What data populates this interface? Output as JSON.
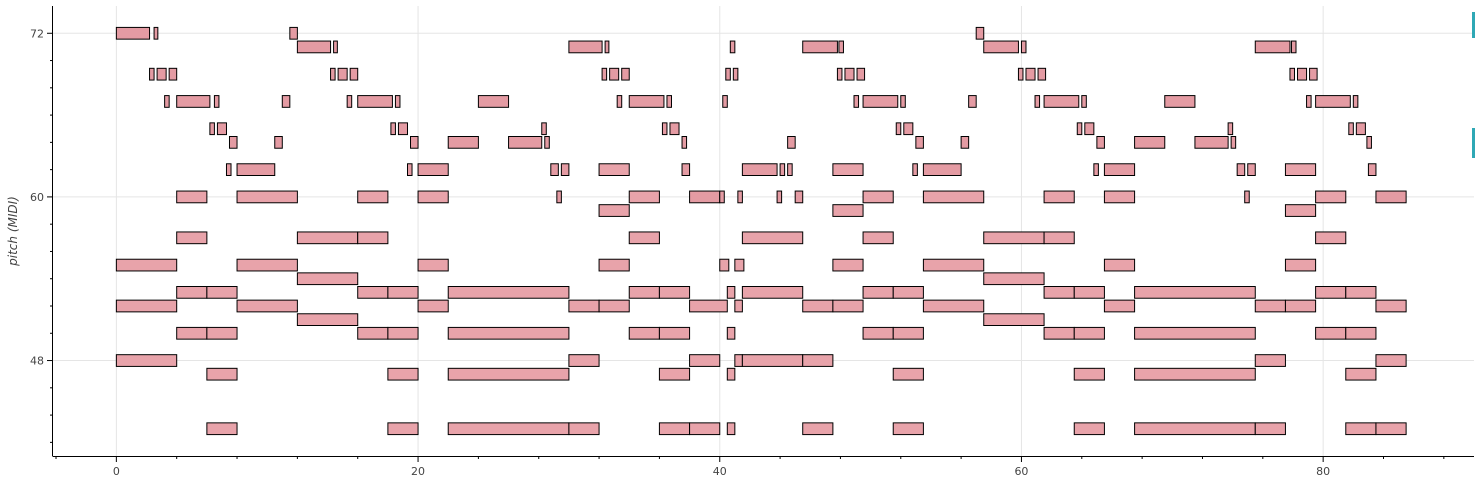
{
  "chart_data": {
    "type": "piano-roll",
    "title": "",
    "xlabel": "",
    "ylabel": "pitch (MIDI)",
    "xlim": [
      -4.2,
      90.0
    ],
    "ylim": [
      41.0,
      74.0
    ],
    "x_ticks": [
      0,
      20,
      40,
      60,
      80
    ],
    "y_ticks": [
      48,
      60,
      72
    ],
    "grid": true,
    "colors": {
      "note_fill": "#e8a3aa",
      "note_fill_dark": "#e49ba3",
      "note_stroke": "#000000",
      "grid": "#e5e5e5",
      "axis": "#000000",
      "accent_marker": "#2fa8b5"
    },
    "notes": [
      {
        "p": 72,
        "s": 0,
        "e": 2.2,
        "v": 1
      },
      {
        "p": 72,
        "s": 2.5,
        "e": 2.75,
        "v": 1
      },
      {
        "p": 72,
        "s": 11.5,
        "e": 12,
        "v": 1
      },
      {
        "p": 72,
        "s": 57,
        "e": 57.5,
        "v": 1
      },
      {
        "p": 71,
        "s": 12,
        "e": 14.2,
        "v": 1
      },
      {
        "p": 71,
        "s": 14.4,
        "e": 14.65,
        "v": 1
      },
      {
        "p": 71,
        "s": 30,
        "e": 32.2,
        "v": 1
      },
      {
        "p": 71,
        "s": 32.4,
        "e": 32.65,
        "v": 1
      },
      {
        "p": 71,
        "s": 40.7,
        "e": 41,
        "v": 1
      },
      {
        "p": 71,
        "s": 45.5,
        "e": 47.8,
        "v": 1
      },
      {
        "p": 71,
        "s": 47.9,
        "e": 48.2,
        "v": 1
      },
      {
        "p": 71,
        "s": 57.5,
        "e": 59.8,
        "v": 1
      },
      {
        "p": 71,
        "s": 60,
        "e": 60.3,
        "v": 1
      },
      {
        "p": 71,
        "s": 75.5,
        "e": 77.8,
        "v": 1
      },
      {
        "p": 71,
        "s": 77.9,
        "e": 78.2,
        "v": 1
      },
      {
        "p": 69,
        "s": 2.2,
        "e": 2.5,
        "v": 1
      },
      {
        "p": 69,
        "s": 2.7,
        "e": 3.3,
        "v": 1
      },
      {
        "p": 69,
        "s": 3.5,
        "e": 4,
        "v": 1
      },
      {
        "p": 69,
        "s": 14.2,
        "e": 14.5,
        "v": 1
      },
      {
        "p": 69,
        "s": 14.7,
        "e": 15.3,
        "v": 1
      },
      {
        "p": 69,
        "s": 15.5,
        "e": 16,
        "v": 1
      },
      {
        "p": 69,
        "s": 32.2,
        "e": 32.5,
        "v": 1
      },
      {
        "p": 69,
        "s": 32.7,
        "e": 33.3,
        "v": 1
      },
      {
        "p": 69,
        "s": 33.5,
        "e": 34,
        "v": 1
      },
      {
        "p": 69,
        "s": 40.4,
        "e": 40.7,
        "v": 1
      },
      {
        "p": 69,
        "s": 40.9,
        "e": 41.2,
        "v": 1
      },
      {
        "p": 69,
        "s": 47.8,
        "e": 48.1,
        "v": 1
      },
      {
        "p": 69,
        "s": 48.3,
        "e": 48.9,
        "v": 1
      },
      {
        "p": 69,
        "s": 49.1,
        "e": 49.6,
        "v": 1
      },
      {
        "p": 69,
        "s": 59.8,
        "e": 60.1,
        "v": 1
      },
      {
        "p": 69,
        "s": 60.3,
        "e": 60.9,
        "v": 1
      },
      {
        "p": 69,
        "s": 61.1,
        "e": 61.6,
        "v": 1
      },
      {
        "p": 69,
        "s": 77.8,
        "e": 78.1,
        "v": 1
      },
      {
        "p": 69,
        "s": 78.3,
        "e": 78.9,
        "v": 1
      },
      {
        "p": 69,
        "s": 79.1,
        "e": 79.6,
        "v": 1
      },
      {
        "p": 67,
        "s": 3.2,
        "e": 3.5,
        "v": 1
      },
      {
        "p": 67,
        "s": 4,
        "e": 6.2,
        "v": 1
      },
      {
        "p": 67,
        "s": 6.5,
        "e": 6.8,
        "v": 1
      },
      {
        "p": 67,
        "s": 11,
        "e": 11.5,
        "v": 1
      },
      {
        "p": 67,
        "s": 15.3,
        "e": 15.6,
        "v": 1
      },
      {
        "p": 67,
        "s": 16,
        "e": 18.3,
        "v": 1
      },
      {
        "p": 67,
        "s": 18.5,
        "e": 18.8,
        "v": 1
      },
      {
        "p": 67,
        "s": 24,
        "e": 26,
        "v": 1
      },
      {
        "p": 67,
        "s": 33.2,
        "e": 33.5,
        "v": 1
      },
      {
        "p": 67,
        "s": 34,
        "e": 36.3,
        "v": 1
      },
      {
        "p": 67,
        "s": 36.5,
        "e": 36.8,
        "v": 1
      },
      {
        "p": 67,
        "s": 40.2,
        "e": 40.5,
        "v": 1
      },
      {
        "p": 67,
        "s": 48.9,
        "e": 49.2,
        "v": 1
      },
      {
        "p": 67,
        "s": 49.5,
        "e": 51.8,
        "v": 1
      },
      {
        "p": 67,
        "s": 52,
        "e": 52.3,
        "v": 1
      },
      {
        "p": 67,
        "s": 56.5,
        "e": 57,
        "v": 1
      },
      {
        "p": 67,
        "s": 60.9,
        "e": 61.2,
        "v": 1
      },
      {
        "p": 67,
        "s": 61.5,
        "e": 63.8,
        "v": 1
      },
      {
        "p": 67,
        "s": 64,
        "e": 64.3,
        "v": 1
      },
      {
        "p": 67,
        "s": 69.5,
        "e": 71.5,
        "v": 1
      },
      {
        "p": 67,
        "s": 78.9,
        "e": 79.2,
        "v": 1
      },
      {
        "p": 67,
        "s": 79.5,
        "e": 81.8,
        "v": 1
      },
      {
        "p": 67,
        "s": 82,
        "e": 82.3,
        "v": 1
      },
      {
        "p": 65,
        "s": 6.2,
        "e": 6.5,
        "v": 1
      },
      {
        "p": 65,
        "s": 6.7,
        "e": 7.3,
        "v": 1
      },
      {
        "p": 65,
        "s": 18.2,
        "e": 18.5,
        "v": 1
      },
      {
        "p": 65,
        "s": 18.7,
        "e": 19.3,
        "v": 1
      },
      {
        "p": 65,
        "s": 28.2,
        "e": 28.5,
        "v": 1
      },
      {
        "p": 65,
        "s": 36.2,
        "e": 36.5,
        "v": 1
      },
      {
        "p": 65,
        "s": 36.7,
        "e": 37.3,
        "v": 1
      },
      {
        "p": 65,
        "s": 51.7,
        "e": 52,
        "v": 1
      },
      {
        "p": 65,
        "s": 52.2,
        "e": 52.8,
        "v": 1
      },
      {
        "p": 65,
        "s": 63.7,
        "e": 64,
        "v": 1
      },
      {
        "p": 65,
        "s": 64.2,
        "e": 64.8,
        "v": 1
      },
      {
        "p": 65,
        "s": 73.7,
        "e": 74,
        "v": 1
      },
      {
        "p": 65,
        "s": 81.7,
        "e": 82,
        "v": 1
      },
      {
        "p": 65,
        "s": 82.2,
        "e": 82.8,
        "v": 1
      },
      {
        "p": 64,
        "s": 7.5,
        "e": 8,
        "v": 1
      },
      {
        "p": 64,
        "s": 10.5,
        "e": 11,
        "v": 1
      },
      {
        "p": 64,
        "s": 19.5,
        "e": 20,
        "v": 1
      },
      {
        "p": 64,
        "s": 22,
        "e": 24,
        "v": 1
      },
      {
        "p": 64,
        "s": 26,
        "e": 28.2,
        "v": 1
      },
      {
        "p": 64,
        "s": 28.4,
        "e": 28.7,
        "v": 1
      },
      {
        "p": 64,
        "s": 37.5,
        "e": 37.8,
        "v": 1
      },
      {
        "p": 64,
        "s": 44.5,
        "e": 45,
        "v": 1
      },
      {
        "p": 64,
        "s": 53,
        "e": 53.5,
        "v": 1
      },
      {
        "p": 64,
        "s": 56,
        "e": 56.5,
        "v": 1
      },
      {
        "p": 64,
        "s": 65,
        "e": 65.5,
        "v": 1
      },
      {
        "p": 64,
        "s": 67.5,
        "e": 69.5,
        "v": 1
      },
      {
        "p": 64,
        "s": 71.5,
        "e": 73.7,
        "v": 1
      },
      {
        "p": 64,
        "s": 73.9,
        "e": 74.2,
        "v": 1
      },
      {
        "p": 64,
        "s": 82.9,
        "e": 83.2,
        "v": 1
      },
      {
        "p": 62,
        "s": 7.3,
        "e": 7.6,
        "v": 1
      },
      {
        "p": 62,
        "s": 8,
        "e": 10.5,
        "v": 1
      },
      {
        "p": 62,
        "s": 19.3,
        "e": 19.6,
        "v": 1
      },
      {
        "p": 62,
        "s": 20,
        "e": 22,
        "v": 1
      },
      {
        "p": 62,
        "s": 28.8,
        "e": 29.3,
        "v": 1
      },
      {
        "p": 62,
        "s": 29.5,
        "e": 30,
        "v": 1
      },
      {
        "p": 62,
        "s": 32,
        "e": 34,
        "v": 0
      },
      {
        "p": 62,
        "s": 37.5,
        "e": 38,
        "v": 1
      },
      {
        "p": 62,
        "s": 41.5,
        "e": 43.8,
        "v": 1
      },
      {
        "p": 62,
        "s": 44,
        "e": 44.3,
        "v": 1
      },
      {
        "p": 62,
        "s": 44.5,
        "e": 44.8,
        "v": 1
      },
      {
        "p": 62,
        "s": 47.5,
        "e": 49.5,
        "v": 0
      },
      {
        "p": 62,
        "s": 52.8,
        "e": 53.1,
        "v": 1
      },
      {
        "p": 62,
        "s": 53.5,
        "e": 56,
        "v": 1
      },
      {
        "p": 62,
        "s": 64.8,
        "e": 65.1,
        "v": 1
      },
      {
        "p": 62,
        "s": 65.5,
        "e": 67.5,
        "v": 1
      },
      {
        "p": 62,
        "s": 74.3,
        "e": 74.8,
        "v": 1
      },
      {
        "p": 62,
        "s": 75,
        "e": 75.5,
        "v": 1
      },
      {
        "p": 62,
        "s": 77.5,
        "e": 79.5,
        "v": 0
      },
      {
        "p": 62,
        "s": 83,
        "e": 83.5,
        "v": 1
      },
      {
        "p": 60,
        "s": 4,
        "e": 6,
        "v": 0
      },
      {
        "p": 60,
        "s": 8,
        "e": 12,
        "v": 0
      },
      {
        "p": 60,
        "s": 16,
        "e": 18,
        "v": 0
      },
      {
        "p": 60,
        "s": 20,
        "e": 22,
        "v": 0
      },
      {
        "p": 60,
        "s": 29.2,
        "e": 29.5,
        "v": 1
      },
      {
        "p": 60,
        "s": 34,
        "e": 36,
        "v": 0
      },
      {
        "p": 60,
        "s": 38,
        "e": 40,
        "v": 1
      },
      {
        "p": 60,
        "s": 40,
        "e": 40.3,
        "v": 1
      },
      {
        "p": 60,
        "s": 41.2,
        "e": 41.5,
        "v": 1
      },
      {
        "p": 60,
        "s": 43.8,
        "e": 44.1,
        "v": 1
      },
      {
        "p": 60,
        "s": 45,
        "e": 45.5,
        "v": 1
      },
      {
        "p": 60,
        "s": 49.5,
        "e": 51.5,
        "v": 0
      },
      {
        "p": 60,
        "s": 53.5,
        "e": 57.5,
        "v": 0
      },
      {
        "p": 60,
        "s": 61.5,
        "e": 63.5,
        "v": 0
      },
      {
        "p": 60,
        "s": 65.5,
        "e": 67.5,
        "v": 0
      },
      {
        "p": 60,
        "s": 74.8,
        "e": 75.1,
        "v": 1
      },
      {
        "p": 60,
        "s": 79.5,
        "e": 81.5,
        "v": 0
      },
      {
        "p": 60,
        "s": 83.5,
        "e": 85.5,
        "v": 1
      },
      {
        "p": 59,
        "s": 32,
        "e": 34,
        "v": 0
      },
      {
        "p": 59,
        "s": 47.5,
        "e": 49.5,
        "v": 0
      },
      {
        "p": 59,
        "s": 77.5,
        "e": 79.5,
        "v": 0
      },
      {
        "p": 57,
        "s": 4,
        "e": 6,
        "v": 0
      },
      {
        "p": 57,
        "s": 12,
        "e": 16,
        "v": 0
      },
      {
        "p": 57,
        "s": 16,
        "e": 18,
        "v": 0
      },
      {
        "p": 57,
        "s": 34,
        "e": 36,
        "v": 0
      },
      {
        "p": 57,
        "s": 41.5,
        "e": 45.5,
        "v": 0
      },
      {
        "p": 57,
        "s": 49.5,
        "e": 51.5,
        "v": 0
      },
      {
        "p": 57,
        "s": 57.5,
        "e": 61.5,
        "v": 0
      },
      {
        "p": 57,
        "s": 61.5,
        "e": 63.5,
        "v": 0
      },
      {
        "p": 57,
        "s": 79.5,
        "e": 81.5,
        "v": 0
      },
      {
        "p": 55,
        "s": 0,
        "e": 4,
        "v": 0
      },
      {
        "p": 55,
        "s": 8,
        "e": 12,
        "v": 0
      },
      {
        "p": 55,
        "s": 20,
        "e": 22,
        "v": 0
      },
      {
        "p": 55,
        "s": 32,
        "e": 34,
        "v": 0
      },
      {
        "p": 55,
        "s": 40,
        "e": 40.6,
        "v": 0
      },
      {
        "p": 55,
        "s": 41,
        "e": 41.6,
        "v": 0
      },
      {
        "p": 55,
        "s": 47.5,
        "e": 49.5,
        "v": 0
      },
      {
        "p": 55,
        "s": 53.5,
        "e": 57.5,
        "v": 0
      },
      {
        "p": 55,
        "s": 65.5,
        "e": 67.5,
        "v": 0
      },
      {
        "p": 55,
        "s": 77.5,
        "e": 79.5,
        "v": 0
      },
      {
        "p": 54,
        "s": 12,
        "e": 16,
        "v": 0
      },
      {
        "p": 54,
        "s": 57.5,
        "e": 61.5,
        "v": 0
      },
      {
        "p": 53,
        "s": 4,
        "e": 6,
        "v": 0
      },
      {
        "p": 53,
        "s": 6,
        "e": 8,
        "v": 0
      },
      {
        "p": 53,
        "s": 16,
        "e": 18,
        "v": 0
      },
      {
        "p": 53,
        "s": 18,
        "e": 20,
        "v": 0
      },
      {
        "p": 53,
        "s": 22,
        "e": 30,
        "v": 0
      },
      {
        "p": 53,
        "s": 34,
        "e": 36,
        "v": 0
      },
      {
        "p": 53,
        "s": 36,
        "e": 38,
        "v": 0
      },
      {
        "p": 53,
        "s": 40.5,
        "e": 41,
        "v": 0
      },
      {
        "p": 53,
        "s": 41.5,
        "e": 45.5,
        "v": 0
      },
      {
        "p": 53,
        "s": 49.5,
        "e": 51.5,
        "v": 0
      },
      {
        "p": 53,
        "s": 51.5,
        "e": 53.5,
        "v": 0
      },
      {
        "p": 53,
        "s": 61.5,
        "e": 63.5,
        "v": 0
      },
      {
        "p": 53,
        "s": 63.5,
        "e": 65.5,
        "v": 0
      },
      {
        "p": 53,
        "s": 67.5,
        "e": 75.5,
        "v": 0
      },
      {
        "p": 53,
        "s": 79.5,
        "e": 81.5,
        "v": 0
      },
      {
        "p": 53,
        "s": 81.5,
        "e": 83.5,
        "v": 0
      },
      {
        "p": 52,
        "s": 0,
        "e": 4,
        "v": 0
      },
      {
        "p": 52,
        "s": 8,
        "e": 12,
        "v": 0
      },
      {
        "p": 52,
        "s": 20,
        "e": 22,
        "v": 0
      },
      {
        "p": 52,
        "s": 30,
        "e": 32,
        "v": 0
      },
      {
        "p": 52,
        "s": 32,
        "e": 34,
        "v": 0
      },
      {
        "p": 52,
        "s": 38,
        "e": 40.5,
        "v": 0
      },
      {
        "p": 52,
        "s": 41,
        "e": 41.5,
        "v": 0
      },
      {
        "p": 52,
        "s": 45.5,
        "e": 47.5,
        "v": 0
      },
      {
        "p": 52,
        "s": 47.5,
        "e": 49.5,
        "v": 0
      },
      {
        "p": 52,
        "s": 53.5,
        "e": 57.5,
        "v": 0
      },
      {
        "p": 52,
        "s": 65.5,
        "e": 67.5,
        "v": 0
      },
      {
        "p": 52,
        "s": 75.5,
        "e": 77.5,
        "v": 0
      },
      {
        "p": 52,
        "s": 77.5,
        "e": 79.5,
        "v": 0
      },
      {
        "p": 52,
        "s": 83.5,
        "e": 85.5,
        "v": 0
      },
      {
        "p": 51,
        "s": 12,
        "e": 16,
        "v": 0
      },
      {
        "p": 51,
        "s": 57.5,
        "e": 61.5,
        "v": 0
      },
      {
        "p": 50,
        "s": 4,
        "e": 6,
        "v": 0
      },
      {
        "p": 50,
        "s": 6,
        "e": 8,
        "v": 0
      },
      {
        "p": 50,
        "s": 16,
        "e": 18,
        "v": 0
      },
      {
        "p": 50,
        "s": 18,
        "e": 20,
        "v": 0
      },
      {
        "p": 50,
        "s": 22,
        "e": 30,
        "v": 0
      },
      {
        "p": 50,
        "s": 34,
        "e": 36,
        "v": 0
      },
      {
        "p": 50,
        "s": 36,
        "e": 38,
        "v": 0
      },
      {
        "p": 50,
        "s": 40.5,
        "e": 41,
        "v": 0
      },
      {
        "p": 50,
        "s": 49.5,
        "e": 51.5,
        "v": 0
      },
      {
        "p": 50,
        "s": 51.5,
        "e": 53.5,
        "v": 0
      },
      {
        "p": 50,
        "s": 61.5,
        "e": 63.5,
        "v": 0
      },
      {
        "p": 50,
        "s": 63.5,
        "e": 65.5,
        "v": 0
      },
      {
        "p": 50,
        "s": 67.5,
        "e": 75.5,
        "v": 0
      },
      {
        "p": 50,
        "s": 79.5,
        "e": 81.5,
        "v": 0
      },
      {
        "p": 50,
        "s": 81.5,
        "e": 83.5,
        "v": 0
      },
      {
        "p": 48,
        "s": 0,
        "e": 4,
        "v": 0
      },
      {
        "p": 48,
        "s": 30,
        "e": 32,
        "v": 0
      },
      {
        "p": 48,
        "s": 38,
        "e": 40,
        "v": 0
      },
      {
        "p": 48,
        "s": 41,
        "e": 41.5,
        "v": 0
      },
      {
        "p": 48,
        "s": 41.5,
        "e": 45.5,
        "v": 0
      },
      {
        "p": 48,
        "s": 45.5,
        "e": 47.5,
        "v": 0
      },
      {
        "p": 48,
        "s": 75.5,
        "e": 77.5,
        "v": 0
      },
      {
        "p": 48,
        "s": 83.5,
        "e": 85.5,
        "v": 0
      },
      {
        "p": 47,
        "s": 6,
        "e": 8,
        "v": 0
      },
      {
        "p": 47,
        "s": 18,
        "e": 20,
        "v": 0
      },
      {
        "p": 47,
        "s": 22,
        "e": 30,
        "v": 0
      },
      {
        "p": 47,
        "s": 36,
        "e": 38,
        "v": 0
      },
      {
        "p": 47,
        "s": 40.5,
        "e": 41,
        "v": 0
      },
      {
        "p": 47,
        "s": 51.5,
        "e": 53.5,
        "v": 0
      },
      {
        "p": 47,
        "s": 63.5,
        "e": 65.5,
        "v": 0
      },
      {
        "p": 47,
        "s": 67.5,
        "e": 75.5,
        "v": 0
      },
      {
        "p": 47,
        "s": 81.5,
        "e": 83.5,
        "v": 0
      },
      {
        "p": 43,
        "s": 6,
        "e": 8,
        "v": 0
      },
      {
        "p": 43,
        "s": 18,
        "e": 20,
        "v": 0
      },
      {
        "p": 43,
        "s": 22,
        "e": 30,
        "v": 0
      },
      {
        "p": 43,
        "s": 30,
        "e": 32,
        "v": 0
      },
      {
        "p": 43,
        "s": 36,
        "e": 38,
        "v": 0
      },
      {
        "p": 43,
        "s": 38,
        "e": 40,
        "v": 0
      },
      {
        "p": 43,
        "s": 40.5,
        "e": 41,
        "v": 0
      },
      {
        "p": 43,
        "s": 45.5,
        "e": 47.5,
        "v": 0
      },
      {
        "p": 43,
        "s": 51.5,
        "e": 53.5,
        "v": 0
      },
      {
        "p": 43,
        "s": 63.5,
        "e": 65.5,
        "v": 0
      },
      {
        "p": 43,
        "s": 67.5,
        "e": 75.5,
        "v": 0
      },
      {
        "p": 43,
        "s": 75.5,
        "e": 77.5,
        "v": 0
      },
      {
        "p": 43,
        "s": 81.5,
        "e": 83.5,
        "v": 0
      },
      {
        "p": 43,
        "s": 83.5,
        "e": 85.5,
        "v": 0
      }
    ]
  }
}
